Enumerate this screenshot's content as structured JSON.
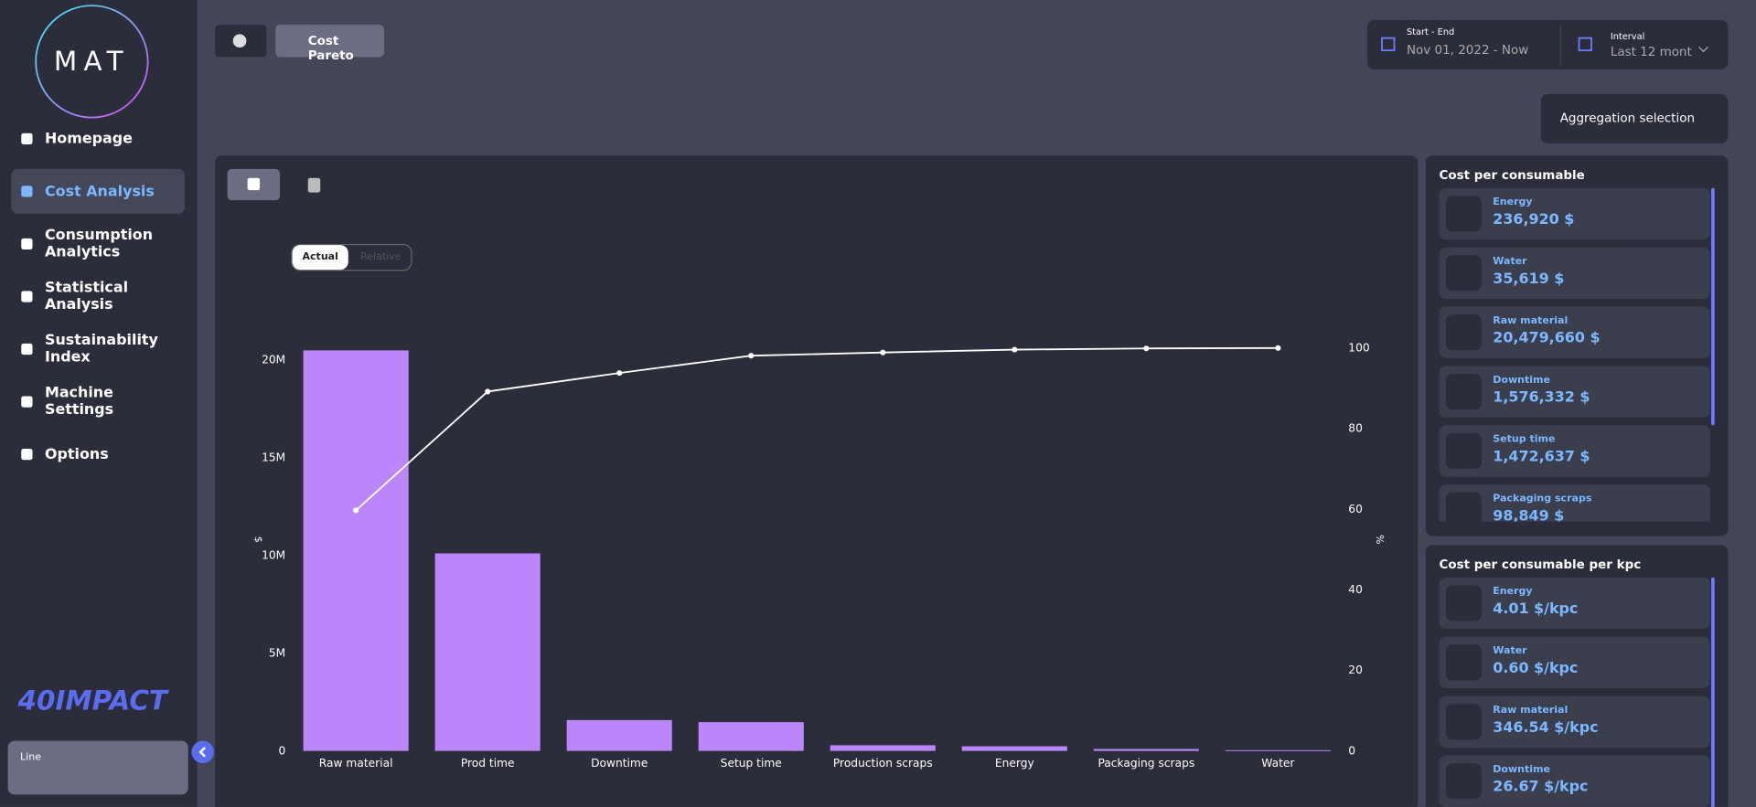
{
  "sidebar": {
    "logo": "MAT",
    "nav": [
      "Homepage",
      "Cost Analysis",
      "Consumption Analytics",
      "Statistical Analysis",
      "Sustainability Index",
      "Machine Settings",
      "Options"
    ],
    "brand": "40IMPACT",
    "line_label": "Line"
  },
  "header": {
    "tab": "Cost Pareto",
    "date_label": "Start - End",
    "date_value": "Nov 01, 2022 - Now",
    "interval_label": "Interval",
    "interval_value": "Last 12 mont",
    "aggregation": "Aggregation selection"
  },
  "toggle": [
    "Actual",
    "Relative"
  ],
  "chart_data": {
    "type": "pareto",
    "categories": [
      "Raw material",
      "Prod time",
      "Downtime",
      "Setup time",
      "Production scraps",
      "Energy",
      "Packaging scraps",
      "Water"
    ],
    "series": [
      {
        "color": "#bb86fc",
        "values": [
          20479660,
          10100000,
          1576332,
          1472637,
          290000,
          236920,
          98849,
          35619
        ]
      },
      {
        "color": "#ffffff",
        "type": "line",
        "axis": "y2",
        "values": [
          59.7,
          89.2,
          93.8,
          98.1,
          98.9,
          99.6,
          99.9,
          100
        ]
      }
    ],
    "ylim": [
      0,
      20600000
    ],
    "yticks": [
      0,
      {
        "value": 5000000,
        "label": "5M"
      },
      {
        "value": 10000000,
        "label": "10M"
      },
      {
        "value": 15000000,
        "label": "15M"
      },
      {
        "value": 20000000,
        "label": "20M"
      }
    ],
    "y2lim": [
      0,
      100
    ],
    "y2ticks": [
      0,
      20,
      40,
      60,
      80,
      100
    ],
    "ylabel": "$",
    "y2label": "%"
  },
  "panels": [
    {
      "title": "Cost per consumable",
      "items": [
        {
          "name": "Energy",
          "value": "236,920 $"
        },
        {
          "name": "Water",
          "value": "35,619 $"
        },
        {
          "name": "Raw material",
          "value": "20,479,660 $"
        },
        {
          "name": "Downtime",
          "value": "1,576,332 $"
        },
        {
          "name": "Setup time",
          "value": "1,472,637 $"
        },
        {
          "name": "Packaging scraps",
          "value": "98,849 $"
        }
      ]
    },
    {
      "title": "Cost per consumable per kpc",
      "items": [
        {
          "name": "Energy",
          "value": "4.01 $/kpc"
        },
        {
          "name": "Water",
          "value": "0.60 $/kpc"
        },
        {
          "name": "Raw material",
          "value": "346.54 $/kpc"
        },
        {
          "name": "Downtime",
          "value": "26.67 $/kpc"
        }
      ]
    }
  ]
}
